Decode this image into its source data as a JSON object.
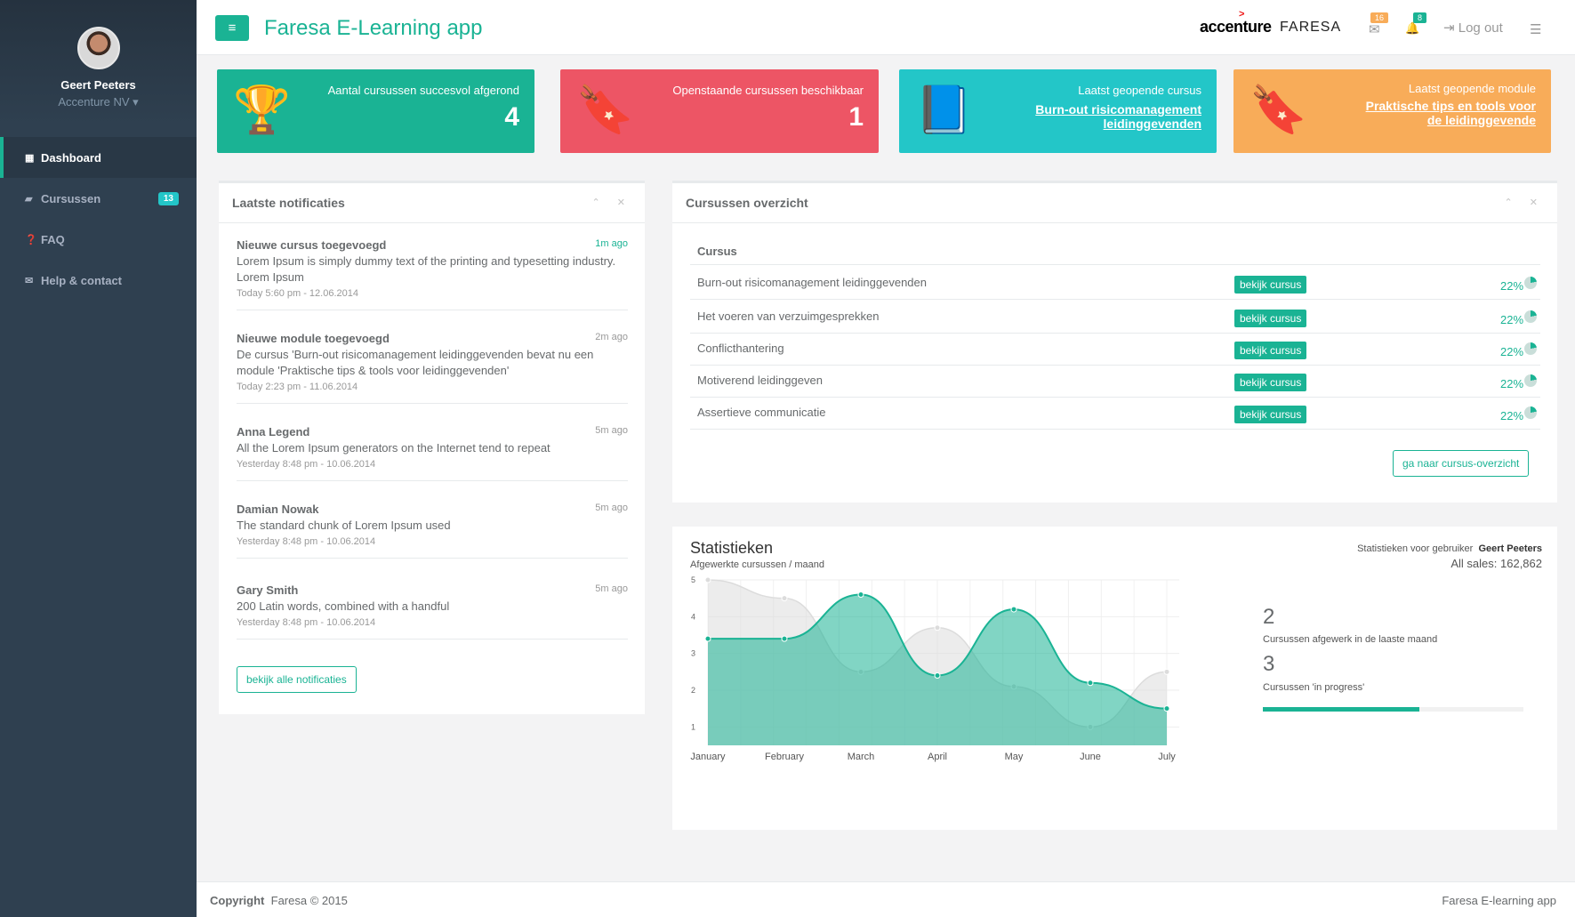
{
  "sidebar": {
    "user_name": "Geert Peeters",
    "org": "Accenture NV ▾",
    "items": [
      {
        "label": "Dashboard",
        "icon": "dashboard-icon",
        "glyph": "▦"
      },
      {
        "label": "Cursussen",
        "icon": "book-icon",
        "glyph": "▰",
        "badge": "13"
      },
      {
        "label": "FAQ",
        "icon": "question-icon",
        "glyph": "❓"
      },
      {
        "label": "Help & contact",
        "icon": "envelope-icon",
        "glyph": "✉"
      }
    ]
  },
  "header": {
    "menu_glyph": "≡",
    "title": "Faresa E-Learning app",
    "logo_accenture": "accenture",
    "logo_accenture_mark": ">",
    "logo_faresa": "FARESA",
    "mail_glyph": "✉",
    "mail_badge": "16",
    "bell_glyph": "🔔",
    "bell_badge": "8",
    "logout_glyph": "⇥",
    "logout": "Log out",
    "tasks_glyph": "☰"
  },
  "tiles": [
    {
      "label": "Aantal cursussen succesvol afgerond",
      "value": "4",
      "color": "#1ab394",
      "icon": "trophy-icon",
      "glyph": "🏆"
    },
    {
      "label": "Openstaande cursussen beschikbaar",
      "value": "1",
      "color": "#ed5565",
      "icon": "bookmark-icon",
      "glyph": "🔖"
    },
    {
      "label": "Laatst geopende cursus",
      "link": "Burn-out risicomanagement leidinggevenden",
      "color": "#23c6c8",
      "icon": "book-icon",
      "glyph": "📘"
    },
    {
      "label": "Laatst geopende module",
      "link": "Praktische tips en tools voor de leidinggevende",
      "color": "#f8ac59",
      "icon": "bookmark-icon",
      "glyph": "🔖"
    }
  ],
  "notifications": {
    "title": "Laatste notificaties",
    "tools": "⌃ ✕",
    "items": [
      {
        "title": "Nieuwe cursus toegevoegd",
        "time": "1m ago",
        "body": "Lorem Ipsum is simply dummy text of the printing and typesetting industry. Lorem Ipsum",
        "meta": "Today 5:60 pm - 12.06.2014"
      },
      {
        "title": "Nieuwe module toegevoegd",
        "time": "2m ago",
        "body": "De cursus 'Burn-out risicomanagement leidinggevenden bevat nu een module 'Praktische tips & tools voor leidinggevenden'",
        "meta": "Today 2:23 pm - 11.06.2014"
      },
      {
        "title": "Anna Legend",
        "time": "5m ago",
        "body": "All the Lorem Ipsum generators on the Internet tend to repeat",
        "meta": "Yesterday 8:48 pm - 10.06.2014"
      },
      {
        "title": "Damian Nowak",
        "time": "5m ago",
        "body": "The standard chunk of Lorem Ipsum used",
        "meta": "Yesterday 8:48 pm - 10.06.2014"
      },
      {
        "title": "Gary Smith",
        "time": "5m ago",
        "body": "200 Latin words, combined with a handful",
        "meta": "Yesterday 8:48 pm - 10.06.2014"
      }
    ],
    "button": "bekijk alle notificaties"
  },
  "courses": {
    "title": "Cursussen overzicht",
    "tools": "⌃ ✕",
    "column": "Cursus",
    "button_label": "bekijk cursus",
    "rows": [
      {
        "name": "Burn-out risicomanagement leidinggevenden",
        "pct": "22%"
      },
      {
        "name": "Het voeren van verzuimgesprekken",
        "pct": "22%"
      },
      {
        "name": "Conflicthantering",
        "pct": "22%"
      },
      {
        "name": "Motiverend leidinggeven",
        "pct": "22%"
      },
      {
        "name": "Assertieve communicatie",
        "pct": "22%"
      }
    ],
    "overview_button": "ga naar cursus-overzicht"
  },
  "stats": {
    "title": "Statistieken",
    "subtitle": "Afgewerkte cursussen / maand",
    "user_label": "Statistieken voor gebruiker",
    "user_name": "Geert Peeters",
    "sales": "All sales: 162,862",
    "kpi1_value": "2",
    "kpi1_label": "Cursussen afgewerk in de laaste maand",
    "kpi2_value": "3",
    "kpi2_label": "Cursussen 'in progress'",
    "progress": 0.6
  },
  "chart_data": {
    "type": "area",
    "x": [
      "January",
      "February",
      "March",
      "April",
      "May",
      "June",
      "July"
    ],
    "ylim": [
      0.5,
      5
    ],
    "yticks": [
      1,
      2,
      3,
      4,
      5
    ],
    "grid": true,
    "series": [
      {
        "values": [
          5.0,
          4.5,
          2.5,
          3.7,
          2.1,
          1.0,
          2.5
        ],
        "color": "#dcdcdc"
      },
      {
        "values": [
          3.4,
          3.4,
          4.6,
          2.4,
          4.2,
          2.2,
          1.5
        ],
        "color": "#1ab394"
      }
    ]
  },
  "footer": {
    "copyright_label": "Copyright",
    "copyright_text": "Faresa © 2015",
    "app": "Faresa E-learning app"
  }
}
